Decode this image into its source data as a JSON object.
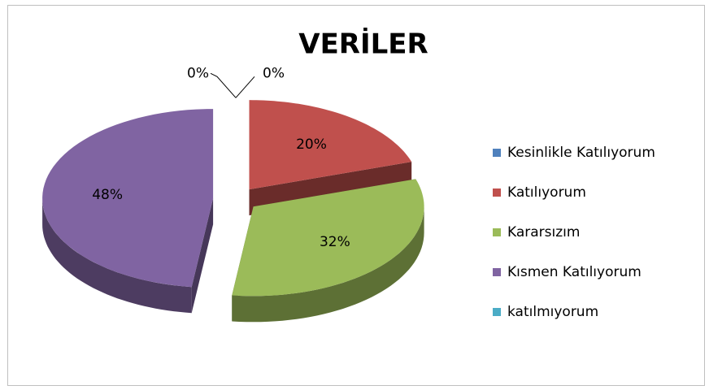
{
  "chart_data": {
    "type": "pie",
    "title": "VERİLER",
    "categories": [
      "Kesinlikle Katılıyorum",
      "Katılıyorum",
      "Kararsızım",
      "Kısmen Katılıyorum",
      "katılmıyorum"
    ],
    "values": [
      0,
      20,
      32,
      48,
      0
    ],
    "value_labels": [
      "0%",
      "20%",
      "32%",
      "48%",
      "0%"
    ],
    "colors": [
      "#4f81bd",
      "#c0504d",
      "#9bbb59",
      "#8064a2",
      "#4bacc6"
    ],
    "legend": "right"
  }
}
